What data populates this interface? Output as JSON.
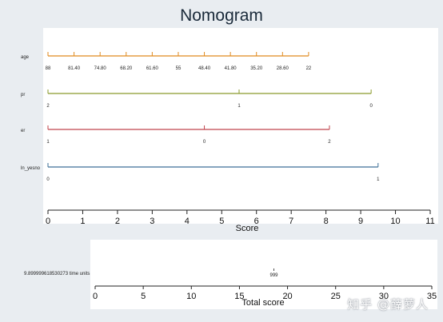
{
  "title": "Nomogram",
  "chart_data": {
    "type": "nomogram",
    "title": "Nomogram",
    "score_axis": {
      "label": "Score",
      "min": 0,
      "max": 11,
      "ticks": [
        0,
        1,
        2,
        3,
        4,
        5,
        6,
        7,
        8,
        9,
        10,
        11
      ]
    },
    "predictors": [
      {
        "name": "age",
        "color": "#e08a1e",
        "points": [
          {
            "label": "88",
            "score": 0
          },
          {
            "label": "81.40",
            "score": 0.75
          },
          {
            "label": "74.80",
            "score": 1.5
          },
          {
            "label": "68.20",
            "score": 2.25
          },
          {
            "label": "61.60",
            "score": 3.0
          },
          {
            "label": "55",
            "score": 3.75
          },
          {
            "label": "48.40",
            "score": 4.5
          },
          {
            "label": "41.80",
            "score": 5.25
          },
          {
            "label": "35.20",
            "score": 6.0
          },
          {
            "label": "28.60",
            "score": 6.75
          },
          {
            "label": "22",
            "score": 7.5
          }
        ]
      },
      {
        "name": "pr",
        "color": "#8a9a2c",
        "points": [
          {
            "label": "2",
            "score": 0
          },
          {
            "label": "1",
            "score": 5.5
          },
          {
            "label": "0",
            "score": 9.3
          }
        ]
      },
      {
        "name": "er",
        "color": "#c0454d",
        "points": [
          {
            "label": "1",
            "score": 0
          },
          {
            "label": "0",
            "score": 4.5
          },
          {
            "label": "2",
            "score": 8.1
          }
        ]
      },
      {
        "name": "ln_yesno",
        "color": "#3d6f96",
        "points": [
          {
            "label": "0",
            "score": 0
          },
          {
            "label": "1",
            "score": 9.5
          }
        ]
      }
    ],
    "total_axis": {
      "label": "Total score",
      "min": 0,
      "max": 35,
      "ticks": [
        0,
        5,
        10,
        15,
        20,
        25,
        30,
        35
      ]
    },
    "survival": {
      "label": "9.899999618530273 time units",
      "value_label": "999",
      "total_score": 18
    }
  },
  "watermark": "知乎 @薛萝人"
}
